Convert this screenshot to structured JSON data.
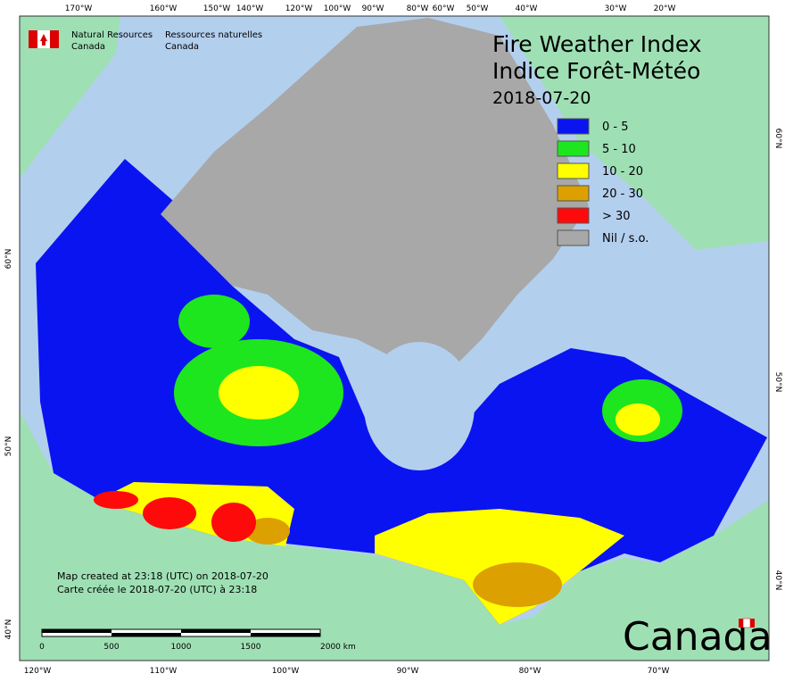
{
  "header": {
    "agency_en": [
      "Natural Resources",
      "Canada"
    ],
    "agency_fr": [
      "Ressources naturelles",
      "Canada"
    ]
  },
  "title": {
    "line1": "Fire Weather Index",
    "line2": "Indice Forêt-Météo",
    "date": "2018-07-20"
  },
  "legend": [
    {
      "label": "0 - 5",
      "color": "#0a14f0"
    },
    {
      "label": "5 - 10",
      "color": "#1ee61e"
    },
    {
      "label": "10 - 20",
      "color": "#ffff00"
    },
    {
      "label": "20 - 30",
      "color": "#dca000"
    },
    {
      "label": "> 30",
      "color": "#ff0a0a"
    },
    {
      "label": "Nil / s.o.",
      "color": "#a8a8a8"
    }
  ],
  "top_lon": [
    "170°W",
    "160°W",
    "150°W",
    "140°W",
    "120°W",
    "100°W",
    "90°W",
    "80°W",
    "60°W",
    "50°W",
    "40°W",
    "30°W",
    "20°W"
  ],
  "bottom_lon": [
    "120°W",
    "110°W",
    "100°W",
    "90°W",
    "80°W",
    "70°W"
  ],
  "left_lat": [
    "60°N",
    "50°N",
    "40°N"
  ],
  "right_lat": [
    "60°N",
    "50°N",
    "40°N"
  ],
  "footer": {
    "created_en": "Map created at 23:18 (UTC) on 2018-07-20",
    "created_fr": "Carte créée le 2018-07-20 (UTC) à 23:18"
  },
  "scale": [
    "0",
    "500",
    "1000",
    "1500",
    "2000  km"
  ],
  "wordmark": "Canada"
}
